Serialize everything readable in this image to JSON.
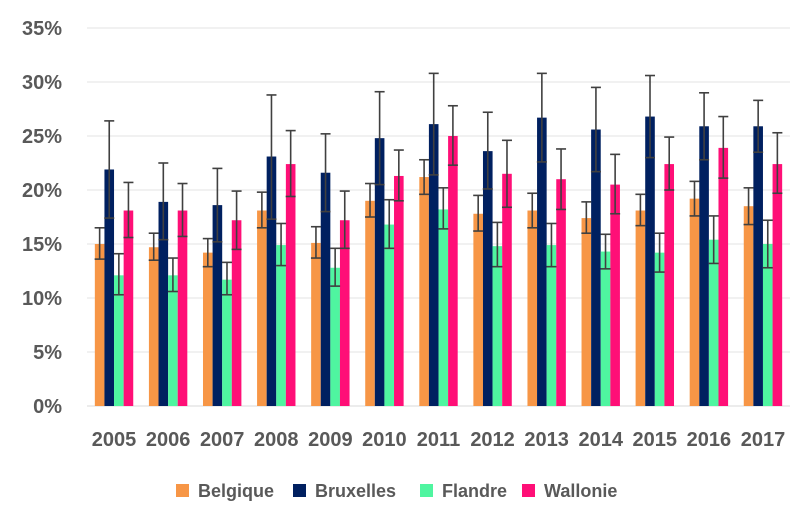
{
  "chart_data": {
    "type": "bar",
    "categories": [
      "2005",
      "2006",
      "2007",
      "2008",
      "2009",
      "2010",
      "2011",
      "2012",
      "2013",
      "2014",
      "2015",
      "2016",
      "2017"
    ],
    "y_ticks": [
      "0%",
      "5%",
      "10%",
      "15%",
      "20%",
      "25%",
      "30%",
      "35%"
    ],
    "ylim": [
      0,
      35
    ],
    "grid": true,
    "legend_position": "bottom",
    "error_bars": true,
    "series": [
      {
        "name": "Belgique",
        "color": "#f79646",
        "values": [
          15.0,
          14.7,
          14.2,
          18.1,
          15.1,
          19.0,
          21.2,
          17.8,
          18.1,
          17.4,
          18.1,
          19.2,
          18.5
        ],
        "err_low": [
          13.6,
          13.5,
          12.9,
          16.5,
          13.7,
          17.5,
          19.6,
          16.2,
          16.5,
          16.0,
          16.7,
          17.6,
          16.8
        ],
        "err_high": [
          16.5,
          16.0,
          15.5,
          19.8,
          16.6,
          20.6,
          22.8,
          19.5,
          19.7,
          18.9,
          19.6,
          20.8,
          20.2
        ]
      },
      {
        "name": "Bruxelles",
        "color": "#002060",
        "values": [
          21.9,
          18.9,
          18.6,
          23.1,
          21.6,
          24.8,
          26.1,
          23.6,
          26.7,
          25.6,
          26.8,
          25.9,
          25.9
        ],
        "err_low": [
          17.4,
          15.4,
          15.2,
          17.3,
          18.0,
          20.5,
          21.4,
          20.1,
          22.6,
          21.7,
          23.0,
          22.8,
          23.5
        ],
        "err_high": [
          26.4,
          22.5,
          22.0,
          28.8,
          25.2,
          29.1,
          30.8,
          27.2,
          30.8,
          29.5,
          30.6,
          29.0,
          28.3
        ]
      },
      {
        "name": "Flandre",
        "color": "#4ff5a0",
        "values": [
          12.1,
          12.1,
          11.7,
          14.9,
          12.8,
          16.8,
          18.2,
          14.8,
          14.9,
          14.3,
          14.2,
          15.4,
          15.0
        ],
        "err_low": [
          10.3,
          10.6,
          10.3,
          13.0,
          11.1,
          14.6,
          16.4,
          12.9,
          12.9,
          12.7,
          12.4,
          13.2,
          12.8
        ],
        "err_high": [
          14.1,
          13.7,
          13.3,
          16.9,
          14.6,
          19.1,
          20.2,
          17.0,
          16.9,
          15.9,
          16.0,
          17.6,
          17.2
        ]
      },
      {
        "name": "Wallonie",
        "color": "#ff0f77",
        "values": [
          18.1,
          18.1,
          17.2,
          22.4,
          17.2,
          21.3,
          25.0,
          21.5,
          21.0,
          20.5,
          22.4,
          23.9,
          22.4
        ],
        "err_low": [
          15.6,
          15.7,
          14.5,
          19.4,
          14.6,
          19.0,
          22.3,
          18.4,
          18.2,
          17.8,
          20.0,
          21.1,
          19.7
        ],
        "err_high": [
          20.7,
          20.6,
          19.9,
          25.5,
          19.9,
          23.7,
          27.8,
          24.6,
          23.8,
          23.3,
          24.9,
          26.8,
          25.3
        ]
      }
    ]
  }
}
